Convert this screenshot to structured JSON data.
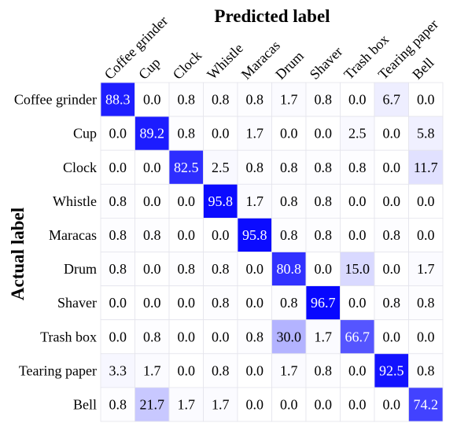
{
  "chart_data": {
    "type": "heatmap",
    "title": "Predicted label",
    "xlabel": "Predicted label",
    "ylabel": "Actual label",
    "x_categories": [
      "Coffee grinder",
      "Cup",
      "Clock",
      "Whistle",
      "Maracas",
      "Drum",
      "Shaver",
      "Trash box",
      "Tearing paper",
      "Bell"
    ],
    "y_categories": [
      "Coffee grinder",
      "Cup",
      "Clock",
      "Whistle",
      "Maracas",
      "Drum",
      "Shaver",
      "Trash box",
      "Tearing paper",
      "Bell"
    ],
    "values": [
      [
        88.3,
        0.0,
        0.8,
        0.8,
        0.8,
        1.7,
        0.8,
        0.0,
        6.7,
        0.0
      ],
      [
        0.0,
        89.2,
        0.8,
        0.0,
        1.7,
        0.0,
        0.0,
        2.5,
        0.0,
        5.8
      ],
      [
        0.0,
        0.0,
        82.5,
        2.5,
        0.8,
        0.8,
        0.8,
        0.8,
        0.0,
        11.7
      ],
      [
        0.8,
        0.0,
        0.0,
        95.8,
        1.7,
        0.8,
        0.8,
        0.0,
        0.0,
        0.0
      ],
      [
        0.8,
        0.8,
        0.0,
        0.0,
        95.8,
        0.8,
        0.8,
        0.0,
        0.8,
        0.0
      ],
      [
        0.8,
        0.0,
        0.8,
        0.8,
        0.0,
        80.8,
        0.0,
        15.0,
        0.0,
        1.7
      ],
      [
        0.0,
        0.0,
        0.0,
        0.8,
        0.0,
        0.8,
        96.7,
        0.0,
        0.8,
        0.8
      ],
      [
        0.0,
        0.8,
        0.0,
        0.0,
        0.8,
        30.0,
        1.7,
        66.7,
        0.0,
        0.0
      ],
      [
        3.3,
        1.7,
        0.0,
        0.8,
        0.0,
        1.7,
        0.8,
        0.0,
        92.5,
        0.8
      ],
      [
        0.8,
        21.7,
        1.7,
        1.7,
        0.0,
        0.0,
        0.0,
        0.0,
        0.0,
        74.2
      ]
    ],
    "value_range": [
      0,
      100
    ],
    "colormap": {
      "low": "#ffffff",
      "high": "#0000ff"
    },
    "grid": true,
    "legend": false
  }
}
